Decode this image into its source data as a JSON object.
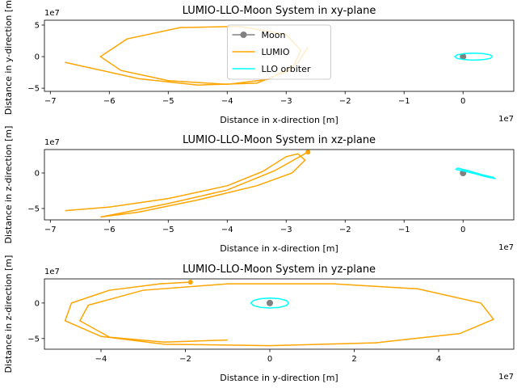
{
  "chart_data": [
    {
      "type": "line",
      "title": "LUMIO-LLO-Moon System in xy-plane",
      "xlabel": "Distance in x-direction [m]",
      "ylabel": "Distance in y-direction [m]",
      "x_offset": "1e7",
      "y_offset": "1e7",
      "legend": "upper center",
      "xlim": [
        -7.1,
        0.86
      ],
      "ylim": [
        -5.5,
        5.77
      ],
      "xticks": [
        {
          "value": -7,
          "label": "−7"
        },
        {
          "value": -6,
          "label": "−6"
        },
        {
          "value": -5,
          "label": "−5"
        },
        {
          "value": -4,
          "label": "−4"
        },
        {
          "value": -3,
          "label": "−3"
        },
        {
          "value": -2,
          "label": "−2"
        },
        {
          "value": -1,
          "label": "−1"
        },
        0
      ],
      "yticks": [
        {
          "value": -5,
          "label": "−5"
        },
        0,
        5
      ],
      "series": [
        {
          "name": "Moon",
          "color": "#808080",
          "marker": true,
          "x": [
            0
          ],
          "values": [
            0
          ]
        },
        {
          "name": "LUMIO",
          "color": "#ffa500",
          "x": [
            -6.75,
            -5.5,
            -4.5,
            -3.5,
            -2.9,
            -2.75,
            -3.0,
            -3.8,
            -4.8,
            -5.7,
            -6.15,
            -5.8,
            -5.0,
            -4.0,
            -3.3,
            -2.8,
            -2.63
          ],
          "values": [
            -0.9,
            -3.5,
            -4.5,
            -4.2,
            -2.0,
            1.0,
            3.5,
            4.8,
            4.6,
            2.8,
            0,
            -2.2,
            -3.8,
            -4.4,
            -3.6,
            -1.0,
            1.5
          ]
        },
        {
          "name": "LLO orbiter",
          "color": "#00ffff",
          "x": [
            0.5,
            0.46,
            0.34,
            0.18,
            0.02,
            -0.1,
            -0.14,
            -0.1,
            0.02,
            0.18,
            0.34,
            0.46,
            0.5
          ],
          "values": [
            0,
            0.28,
            0.48,
            0.55,
            0.48,
            0.28,
            0,
            -0.28,
            -0.48,
            -0.55,
            -0.48,
            -0.28,
            0
          ]
        }
      ]
    },
    {
      "type": "line",
      "title": "LUMIO-LLO-Moon System in xz-plane",
      "xlabel": "Distance in x-direction [m]",
      "ylabel": "Distance in z-direction [m]",
      "x_offset": "1e7",
      "y_offset": "1e7",
      "xlim": [
        -7.1,
        0.86
      ],
      "ylim": [
        -6.6,
        3.3
      ],
      "xticks": [
        {
          "value": -7,
          "label": "−7"
        },
        {
          "value": -6,
          "label": "−6"
        },
        {
          "value": -5,
          "label": "−5"
        },
        {
          "value": -4,
          "label": "−4"
        },
        {
          "value": -3,
          "label": "−3"
        },
        {
          "value": -2,
          "label": "−2"
        },
        {
          "value": -1,
          "label": "−1"
        },
        0
      ],
      "yticks": [
        {
          "value": -5,
          "label": "−5"
        },
        0
      ],
      "series": [
        {
          "name": "Moon",
          "color": "#808080",
          "marker": true,
          "x": [
            0
          ],
          "values": [
            0
          ]
        },
        {
          "name": "LUMIO",
          "color": "#ffa500",
          "end_marker": true,
          "x": [
            -6.75,
            -6.0,
            -5.0,
            -4.0,
            -3.4,
            -3.0,
            -2.8,
            -2.68,
            -2.9,
            -3.5,
            -4.5,
            -5.5,
            -6.15,
            -5.9,
            -5.0,
            -4.0,
            -3.2,
            -2.63
          ],
          "values": [
            -5.3,
            -4.8,
            -3.6,
            -1.8,
            0.2,
            2.3,
            2.7,
            1.8,
            0,
            -1.8,
            -3.8,
            -5.5,
            -6.2,
            -5.8,
            -4.3,
            -2.4,
            0.3,
            2.95
          ]
        },
        {
          "name": "LLO orbiter",
          "color": "#00ffff",
          "x": [
            -0.1,
            0.1,
            0.3,
            0.5,
            0.55,
            0.4,
            0.2,
            0,
            -0.12,
            -0.1
          ],
          "values": [
            0.7,
            0.3,
            -0.2,
            -0.6,
            -0.8,
            -0.55,
            -0.1,
            0.3,
            0.5,
            0.7
          ]
        }
      ]
    },
    {
      "type": "line",
      "title": "LUMIO-LLO-Moon System in yz-plane",
      "xlabel": "Distance in y-direction [m]",
      "ylabel": "Distance in z-direction [m]",
      "x_offset": "1e7",
      "y_offset": "1e7",
      "xlim": [
        -5.34,
        5.78
      ],
      "ylim": [
        -6.5,
        3.4
      ],
      "xticks": [
        {
          "value": -4,
          "label": "−4"
        },
        {
          "value": -2,
          "label": "−2"
        },
        0,
        2,
        4
      ],
      "yticks": [
        {
          "value": -5,
          "label": "−5"
        },
        0
      ],
      "series": [
        {
          "name": "Moon",
          "color": "#808080",
          "marker": true,
          "x": [
            0
          ],
          "values": [
            0
          ]
        },
        {
          "name": "LUMIO",
          "color": "#ffa500",
          "end_marker": true,
          "x": [
            -1.0,
            -2.5,
            -3.8,
            -4.5,
            -4.3,
            -3.0,
            -1.0,
            1.5,
            3.5,
            5.0,
            5.3,
            4.5,
            2.5,
            0,
            -2.5,
            -4.0,
            -4.85,
            -4.7,
            -3.8,
            -2.6,
            -1.88
          ],
          "values": [
            -5.2,
            -5.5,
            -4.8,
            -2.5,
            -0.3,
            1.8,
            2.7,
            2.7,
            2.0,
            0,
            -2.3,
            -4.3,
            -5.6,
            -6.0,
            -5.8,
            -4.7,
            -2.5,
            0,
            1.8,
            2.7,
            2.95
          ]
        },
        {
          "name": "LLO orbiter",
          "color": "#00ffff",
          "x": [
            0.45,
            0.39,
            0.225,
            0,
            -0.225,
            -0.39,
            -0.45,
            -0.39,
            -0.225,
            0,
            0.225,
            0.39,
            0.45
          ],
          "values": [
            0,
            0.35,
            0.61,
            0.7,
            0.61,
            0.35,
            0,
            -0.35,
            -0.61,
            -0.7,
            -0.61,
            -0.35,
            0
          ]
        }
      ]
    }
  ]
}
